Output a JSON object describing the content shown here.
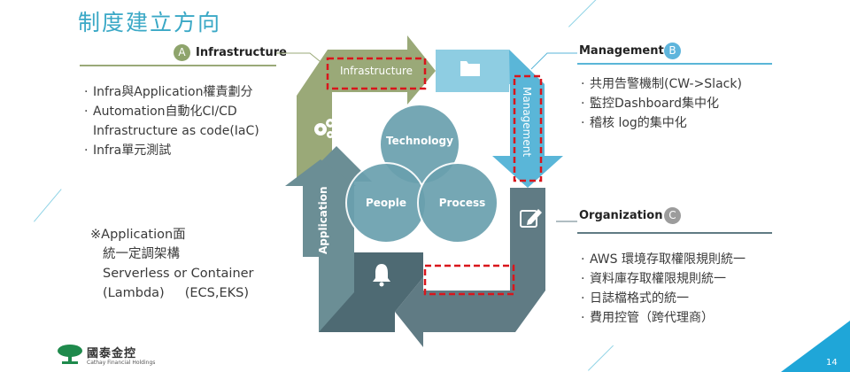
{
  "title": "制度建立方向",
  "colors": {
    "teal": "#3aa8c6",
    "olive": "#9aa978",
    "blue_arrow": "#5ab6d8",
    "slate": "#607b84",
    "circle": "#6aa0ae",
    "badge_olive": "#8ea46c",
    "badge_blue": "#5fb5dc",
    "badge_grey": "#9c9c9c",
    "dashed_red": "#d9161c"
  },
  "sections": {
    "infrastructure": {
      "badge": "A",
      "label": "Infrastructure",
      "bullets": [
        "Infra與Application權責劃分",
        "Automation自動化CI/CD",
        "Infrastructure as code(IaC)",
        "Infra單元測試"
      ]
    },
    "management": {
      "badge": "B",
      "label": "Management",
      "bullets": [
        "共用告警機制(CW->Slack)",
        "監控Dashboard集中化",
        "稽核 log的集中化"
      ]
    },
    "organization": {
      "badge": "C",
      "label": "Organization",
      "bullets": [
        "AWS 環境存取權限規則統一",
        "資料庫存取權限規則統一",
        "日誌檔格式的統一",
        "費用控管（跨代理商）"
      ]
    }
  },
  "application_note": {
    "heading": "※Application面",
    "lines": [
      "統一定調架構",
      "Serverless or Container",
      "(Lambda)     (ECS,EKS)"
    ]
  },
  "diagram": {
    "arrows": {
      "infrastructure": "Infrastructure",
      "management": "Management",
      "organization": "Organization",
      "application": "Application"
    },
    "circles": {
      "technology": "Technology",
      "people": "People",
      "process": "Process"
    },
    "icons": [
      "folder-icon",
      "gears-icon",
      "edit-icon",
      "bell-icon"
    ]
  },
  "footer": {
    "logo_zh": "國泰金控",
    "logo_en": "Cathay Financial Holdings",
    "page": "14"
  }
}
